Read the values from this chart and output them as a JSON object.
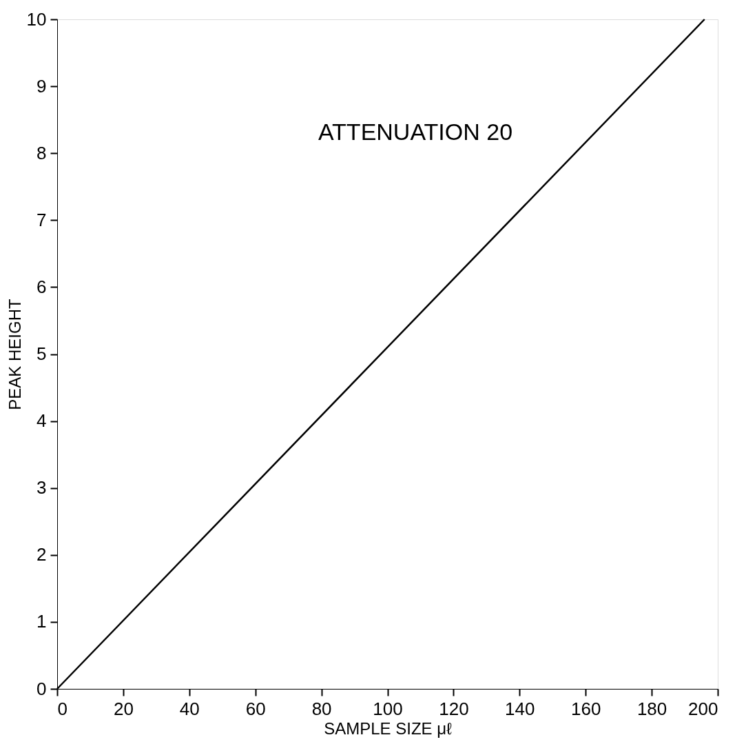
{
  "chart_data": {
    "type": "line",
    "xlabel": "SAMPLE SIZE μℓ",
    "ylabel": "PEAK HEIGHT",
    "annotations": [
      "ATTENUATION 20"
    ],
    "x": [
      0,
      196
    ],
    "series": [
      {
        "color": "#000000",
        "values": [
          0,
          10
        ]
      }
    ],
    "xlim": [
      0,
      200
    ],
    "xticks": [
      0,
      20,
      40,
      60,
      80,
      100,
      120,
      140,
      160,
      180,
      200
    ],
    "ylim": [
      0,
      10
    ],
    "yticks": [
      0,
      1,
      2,
      3,
      4,
      5,
      6,
      7,
      8,
      9,
      10
    ],
    "grid": false,
    "marker": "none",
    "line_style": "solid"
  }
}
